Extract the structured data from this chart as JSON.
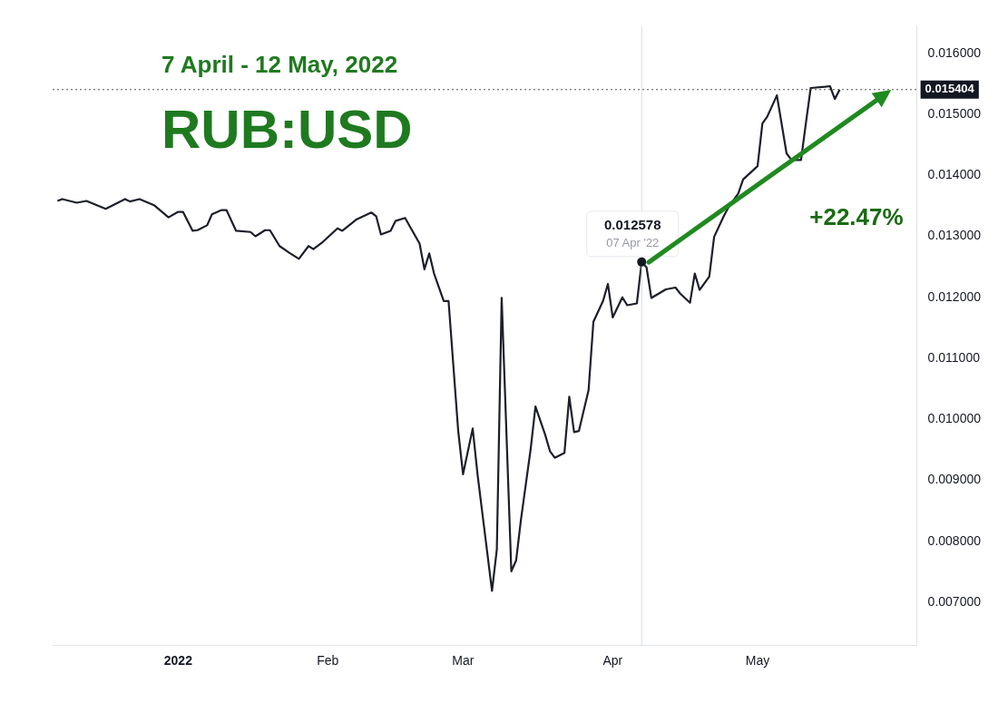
{
  "chart_data": {
    "type": "line",
    "title": "RUB:USD",
    "subtitle": "7 April - 12 May, 2022",
    "annotations": [
      {
        "text": "0.012578",
        "x": "2022-04-07",
        "y": 0.012578
      },
      {
        "text": "07 Apr '22",
        "x": "2022-04-07",
        "y": 0.012578
      },
      "+22.47%"
    ],
    "series": [
      {
        "color": "#1c1f2a",
        "x": [
          "2021-12-07",
          "2021-12-08",
          "2021-12-11",
          "2021-12-13",
          "2021-12-17",
          "2021-12-21",
          "2021-12-22",
          "2021-12-24",
          "2021-12-27",
          "2021-12-30",
          "2022-01-01",
          "2022-01-02",
          "2022-01-04",
          "2022-01-05",
          "2022-01-07",
          "2022-01-08",
          "2022-01-10",
          "2022-01-11",
          "2022-01-13",
          "2022-01-16",
          "2022-01-17",
          "2022-01-19",
          "2022-01-20",
          "2022-01-22",
          "2022-01-24",
          "2022-01-26",
          "2022-01-28",
          "2022-01-29",
          "2022-01-31",
          "2022-02-03",
          "2022-02-04",
          "2022-02-07",
          "2022-02-10",
          "2022-02-11",
          "2022-02-12",
          "2022-02-14",
          "2022-02-15",
          "2022-02-17",
          "2022-02-18",
          "2022-02-20",
          "2022-02-21",
          "2022-02-22",
          "2022-02-23",
          "2022-02-25",
          "2022-02-26",
          "2022-02-28",
          "2022-03-01",
          "2022-03-03",
          "2022-03-04",
          "2022-03-07",
          "2022-03-08",
          "2022-03-09",
          "2022-03-11",
          "2022-03-12",
          "2022-03-13",
          "2022-03-15",
          "2022-03-16",
          "2022-03-18",
          "2022-03-19",
          "2022-03-20",
          "2022-03-22",
          "2022-03-23",
          "2022-03-24",
          "2022-03-25",
          "2022-03-27",
          "2022-03-28",
          "2022-03-30",
          "2022-03-31",
          "2022-04-01",
          "2022-04-03",
          "2022-04-04",
          "2022-04-06",
          "2022-04-07",
          "2022-04-08",
          "2022-04-09",
          "2022-04-12",
          "2022-04-14",
          "2022-04-15",
          "2022-04-17",
          "2022-04-18",
          "2022-04-19",
          "2022-04-21",
          "2022-04-22",
          "2022-04-24",
          "2022-04-25",
          "2022-04-27",
          "2022-04-28",
          "2022-05-01",
          "2022-05-02",
          "2022-05-03",
          "2022-05-05",
          "2022-05-07",
          "2022-05-08",
          "2022-05-10",
          "2022-05-11",
          "2022-05-12",
          "2022-05-15",
          "2022-05-16",
          "2022-05-17",
          "2022-05-18"
        ],
        "values": [
          0.01358,
          0.01361,
          0.01355,
          0.01358,
          0.01345,
          0.01361,
          0.01357,
          0.01361,
          0.01351,
          0.01331,
          0.0134,
          0.0134,
          0.01309,
          0.0131,
          0.01318,
          0.01336,
          0.01343,
          0.01343,
          0.01309,
          0.01307,
          0.013,
          0.0131,
          0.0131,
          0.01284,
          0.01273,
          0.01263,
          0.01284,
          0.01279,
          0.01291,
          0.01313,
          0.01309,
          0.01328,
          0.01339,
          0.01333,
          0.01303,
          0.01309,
          0.01325,
          0.0133,
          0.01316,
          0.01288,
          0.01246,
          0.01272,
          0.01239,
          0.01194,
          0.01194,
          0.00981,
          0.0091,
          0.00985,
          0.0091,
          0.00719,
          0.00787,
          0.01199,
          0.00751,
          0.00769,
          0.00836,
          0.00951,
          0.01021,
          0.00975,
          0.00948,
          0.00937,
          0.00945,
          0.01037,
          0.00979,
          0.00981,
          0.01048,
          0.0116,
          0.01194,
          0.01222,
          0.01167,
          0.012,
          0.01187,
          0.0119,
          0.012578,
          0.01249,
          0.01199,
          0.01213,
          0.01216,
          0.01206,
          0.01191,
          0.01239,
          0.01212,
          0.01234,
          0.01299,
          0.01333,
          0.01348,
          0.0137,
          0.01393,
          0.01415,
          0.01485,
          0.01496,
          0.01531,
          0.01436,
          0.01425,
          0.01425,
          0.01485,
          0.01543,
          0.01545,
          0.01546,
          0.01525,
          0.015404
        ]
      }
    ],
    "xlim": [
      "2021-12-06",
      "2022-06-03"
    ],
    "xticks": [
      {
        "value": "2022-01-01",
        "label": "2022"
      },
      {
        "value": "2022-02-01",
        "label": "Feb"
      },
      {
        "value": "2022-03-01",
        "label": "Mar"
      },
      {
        "value": "2022-04-01",
        "label": "Apr"
      },
      {
        "value": "2022-05-01",
        "label": "May"
      }
    ],
    "ylim": [
      0.0063,
      0.01645
    ],
    "yticks": [
      {
        "value": 0.007,
        "label": "0.007000"
      },
      {
        "value": 0.008,
        "label": "0.008000"
      },
      {
        "value": 0.009,
        "label": "0.009000"
      },
      {
        "value": 0.01,
        "label": "0.010000"
      },
      {
        "value": 0.011,
        "label": "0.011000"
      },
      {
        "value": 0.012,
        "label": "0.012000"
      },
      {
        "value": 0.013,
        "label": "0.013000"
      },
      {
        "value": 0.014,
        "label": "0.014000"
      },
      {
        "value": 0.015,
        "label": "0.015000"
      },
      {
        "value": 0.016,
        "label": "0.016000"
      }
    ],
    "ref_lines": [
      {
        "axis": "y",
        "value": 0.015404,
        "label": "0.015404",
        "line_style": "dotted",
        "color": "#555555"
      },
      {
        "axis": "x",
        "value": "2022-04-07",
        "color": "#d8dce6"
      }
    ],
    "grid": false,
    "legend": false,
    "marker": "none",
    "line_style": "solid"
  }
}
